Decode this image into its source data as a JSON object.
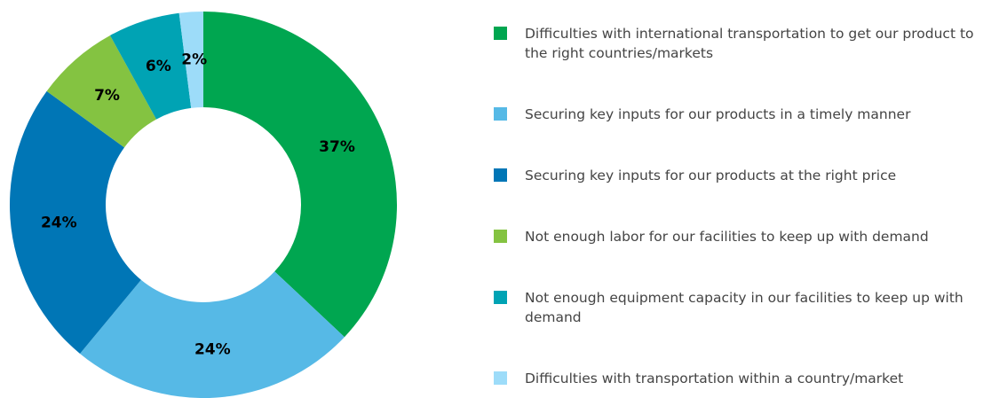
{
  "chart_data": {
    "type": "pie",
    "categories": [
      "Difficulties with international transportation to get our product to the right countries/markets",
      "Securing key inputs for our products in a timely manner",
      "Securing key inputs for our products at the right price",
      "Not enough labor for our facilities to keep up with demand",
      "Not enough equipment capacity in our facilities to keep up with demand",
      "Difficulties with transportation within a country/market"
    ],
    "values": [
      37,
      24,
      24,
      7,
      6,
      2
    ],
    "value_labels": [
      "37%",
      "24%",
      "24%",
      "7%",
      "6%",
      "2%"
    ],
    "colors": [
      "#00a650",
      "#56b9e6",
      "#0076b6",
      "#84c341",
      "#00a3b4",
      "#9ddcf9"
    ],
    "donut": true
  }
}
